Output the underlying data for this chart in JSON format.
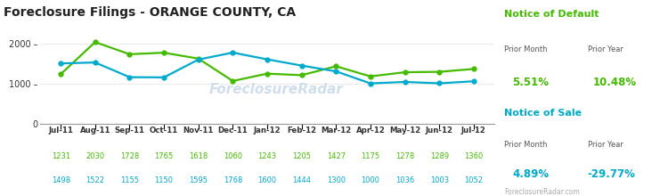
{
  "title": "Foreclosure Filings - ORANGE COUNTY, CA",
  "categories": [
    "Jul-11",
    "Aug-11",
    "Sep-11",
    "Oct-11",
    "Nov-11",
    "Dec-11",
    "Jan-12",
    "Feb-12",
    "Mar-12",
    "Apr-12",
    "May-12",
    "Jun-12",
    "Jul-12"
  ],
  "nod_values": [
    1231,
    2030,
    1728,
    1765,
    1618,
    1060,
    1243,
    1205,
    1427,
    1175,
    1278,
    1289,
    1360
  ],
  "nos_values": [
    1498,
    1522,
    1155,
    1150,
    1595,
    1768,
    1600,
    1444,
    1300,
    1000,
    1036,
    1003,
    1052
  ],
  "nod_color": "#44bb00",
  "nos_color": "#00aacc",
  "ylim": [
    0,
    2200
  ],
  "yticks": [
    0,
    1000,
    2000
  ],
  "background_color": "#ffffff",
  "title_color": "#222222",
  "title_fontsize": 10,
  "nod_label": "Notice of Default",
  "nos_label": "Notice of Sale",
  "nod_prior_month": "5.51%",
  "nod_prior_year": "10.48%",
  "nos_prior_month": "4.89%",
  "nos_prior_year": "-29.77%",
  "watermark": "ForeclosureRadar",
  "footer": "ForeclosureRadar.com",
  "label_color_nod": "#44bb00",
  "label_color_nos": "#00aacc"
}
